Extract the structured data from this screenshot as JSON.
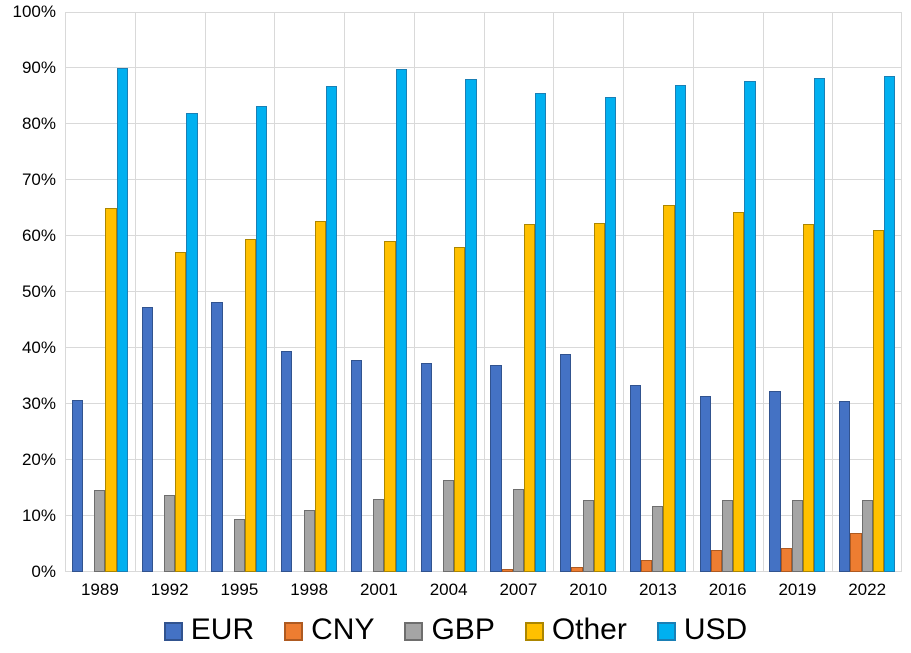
{
  "chart_data": {
    "type": "bar",
    "title": "",
    "xlabel": "",
    "ylabel": "",
    "categories": [
      "1989",
      "1992",
      "1995",
      "1998",
      "2001",
      "2004",
      "2007",
      "2010",
      "2013",
      "2016",
      "2019",
      "2022"
    ],
    "series": [
      {
        "name": "EUR",
        "color": "#4472C4",
        "outline": "#31538f",
        "values": [
          30.7,
          47.4,
          48.3,
          39.5,
          37.9,
          37.4,
          37.0,
          39.0,
          33.4,
          31.4,
          32.3,
          30.5
        ]
      },
      {
        "name": "CNY",
        "color": "#ED7D31",
        "outline": "#ae5a21",
        "values": [
          0.0,
          0.0,
          0.0,
          0.0,
          0.0,
          0.1,
          0.5,
          0.9,
          2.2,
          4.0,
          4.3,
          7.0
        ]
      },
      {
        "name": "GBP",
        "color": "#A5A5A5",
        "outline": "#6e6e6e",
        "values": [
          14.6,
          13.7,
          9.4,
          11.0,
          13.0,
          16.5,
          14.9,
          12.9,
          11.8,
          12.8,
          12.8,
          12.9
        ]
      },
      {
        "name": "Other",
        "color": "#FFC000",
        "outline": "#ac8600",
        "values": [
          65.0,
          57.1,
          59.4,
          62.7,
          59.1,
          58.0,
          62.1,
          62.3,
          65.5,
          64.2,
          62.2,
          61.1
        ]
      },
      {
        "name": "USD",
        "color": "#00B0F0",
        "outline": "#1a7fb5",
        "values": [
          90.0,
          82.0,
          83.2,
          86.8,
          89.9,
          88.0,
          85.6,
          84.9,
          87.0,
          87.6,
          88.3,
          88.5
        ]
      }
    ],
    "ylim": [
      0,
      100
    ],
    "ytick_step": 10,
    "y_tick_labels": [
      "0%",
      "10%",
      "20%",
      "30%",
      "40%",
      "50%",
      "60%",
      "70%",
      "80%",
      "90%",
      "100%"
    ],
    "grid": true,
    "gridline_color": "#d9d9d9",
    "legend_position": "bottom"
  }
}
